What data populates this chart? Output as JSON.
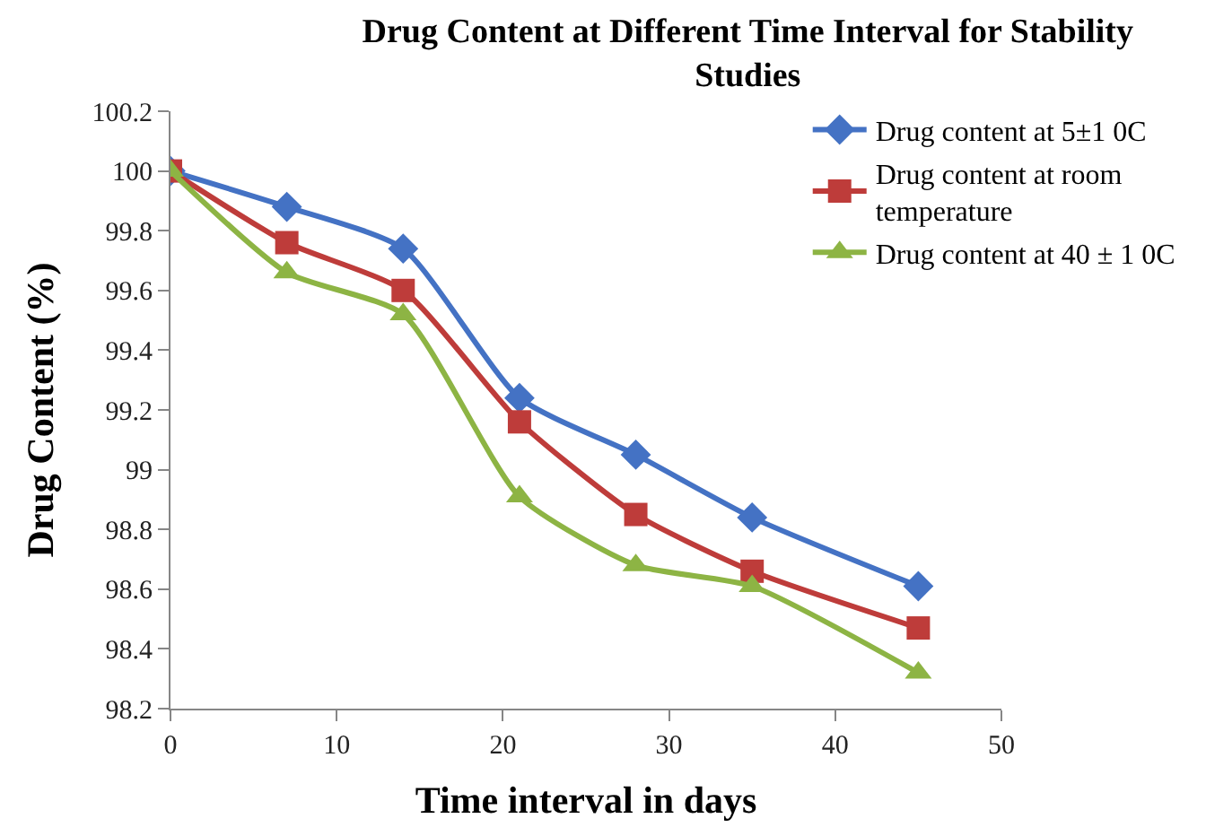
{
  "chart_data": {
    "type": "line",
    "title": "Drug Content at Different Time Interval for Stability Studies",
    "xlabel": "Time interval in days",
    "ylabel": "Drug Content (%)",
    "x": [
      0,
      7,
      14,
      21,
      28,
      35,
      45
    ],
    "series": [
      {
        "name": "Drug content at 5±1 0C",
        "color": "#4472c4",
        "marker": "diamond",
        "values": [
          100,
          99.88,
          99.74,
          99.24,
          99.05,
          98.84,
          98.61
        ]
      },
      {
        "name": "Drug content at room temperature",
        "color": "#be3c3a",
        "marker": "square",
        "values": [
          100,
          99.76,
          99.6,
          99.16,
          98.85,
          98.66,
          98.47
        ]
      },
      {
        "name": "Drug content at 40 ± 1 0C",
        "color": "#8db444",
        "marker": "triangle",
        "values": [
          100,
          99.66,
          99.52,
          98.91,
          98.68,
          98.61,
          98.32
        ]
      }
    ],
    "xlim": [
      0,
      50
    ],
    "xticks": [
      0,
      10,
      20,
      30,
      40,
      50
    ],
    "ylim": [
      98.2,
      100.2
    ],
    "yticks": [
      98.2,
      98.4,
      98.6,
      98.8,
      99,
      99.2,
      99.4,
      99.6,
      99.8,
      100,
      100.2
    ],
    "legend": "top right",
    "line_style": "solid"
  }
}
